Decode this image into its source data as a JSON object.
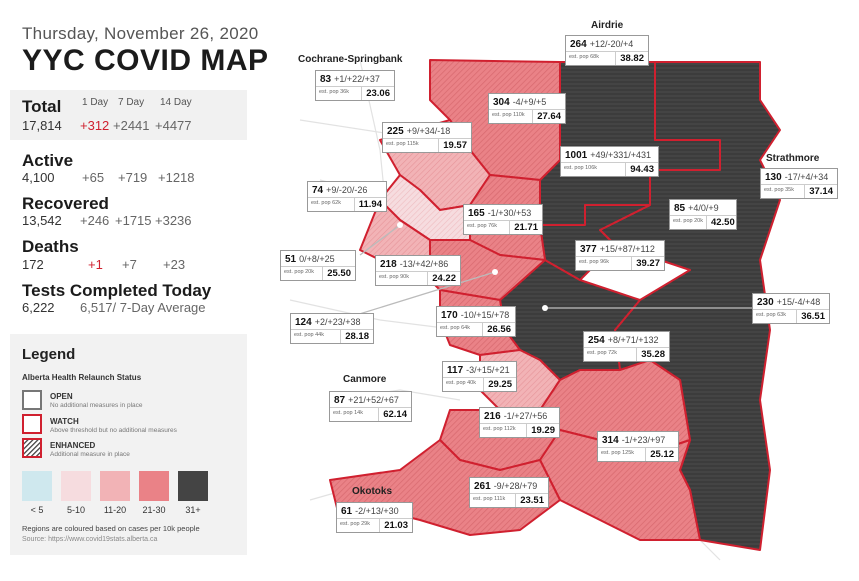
{
  "header": {
    "date": "Thursday, November 26, 2020",
    "title": "YYC COVID MAP"
  },
  "stats": {
    "total": {
      "label": "Total",
      "value": "17,814",
      "day1": "+312",
      "day7": "+2441",
      "day14": "+4477"
    },
    "col_headers": {
      "day1": "1 Day",
      "day7": "7 Day",
      "day14": "14 Day"
    },
    "active": {
      "label": "Active",
      "value": "4,100",
      "day1": "+65",
      "day7": "+719",
      "day14": "+1218"
    },
    "recovered": {
      "label": "Recovered",
      "value": "13,542",
      "day1": "+246",
      "day7": "+1715",
      "day14": "+3236"
    },
    "deaths": {
      "label": "Deaths",
      "value": "172",
      "day1": "+1",
      "day7": "+7",
      "day14": "+23"
    },
    "tests": {
      "label": "Tests Completed Today",
      "value": "6,222",
      "average": "6,517/ 7-Day Average"
    }
  },
  "legend": {
    "title": "Legend",
    "subtitle": "Alberta Health Relaunch Status",
    "statuses": [
      {
        "label": "OPEN",
        "desc": "No additional measures in place"
      },
      {
        "label": "WATCH",
        "desc": "Above threshold but no additional measures"
      },
      {
        "label": "ENHANCED",
        "desc": "Additional measure in place"
      }
    ],
    "scale": [
      {
        "label": "< 5",
        "color": "#cfe8ee"
      },
      {
        "label": "5-10",
        "color": "#f6dcdf"
      },
      {
        "label": "11-20",
        "color": "#f2b3b6"
      },
      {
        "label": "21-30",
        "color": "#ea8287"
      },
      {
        "label": "31+",
        "color": "#444444"
      }
    ],
    "note": "Regions are coloured based on cases per 10k people",
    "source": "Source: https://www.covid19stats.alberta.ca"
  },
  "areas": {
    "airdrie": "Airdrie",
    "cochrane": "Cochrane-Springbank",
    "strathmore": "Strathmore",
    "canmore": "Canmore",
    "okotoks": "Okotoks"
  },
  "districts": [
    {
      "cases": "264",
      "change": "+12/-20/+4",
      "pop": "est. pop 68k",
      "rate": "38.82"
    },
    {
      "cases": "83",
      "change": "+1/+22/+37",
      "pop": "est. pop 36k",
      "rate": "23.06"
    },
    {
      "cases": "304",
      "change": "-4/+9/+5",
      "pop": "est. pop 110k",
      "rate": "27.64"
    },
    {
      "cases": "225",
      "change": "+9/+34/-18",
      "pop": "est. pop 115k",
      "rate": "19.57"
    },
    {
      "cases": "1001",
      "change": "+49/+331/+431",
      "pop": "est. pop 106k",
      "rate": "94.43"
    },
    {
      "cases": "130",
      "change": "-17/+4/+34",
      "pop": "est. pop 35k",
      "rate": "37.14"
    },
    {
      "cases": "74",
      "change": "+9/-20/-26",
      "pop": "est. pop 62k",
      "rate": "11.94"
    },
    {
      "cases": "165",
      "change": "-1/+30/+53",
      "pop": "est. pop 76k",
      "rate": "21.71"
    },
    {
      "cases": "85",
      "change": "+4/0/+9",
      "pop": "est. pop 20k",
      "rate": "42.50"
    },
    {
      "cases": "51",
      "change": "0/+8/+25",
      "pop": "est. pop 20k",
      "rate": "25.50"
    },
    {
      "cases": "218",
      "change": "-13/+42/+86",
      "pop": "est. pop 90k",
      "rate": "24.22"
    },
    {
      "cases": "377",
      "change": "+15/+87/+112",
      "pop": "est. pop 96k",
      "rate": "39.27"
    },
    {
      "cases": "230",
      "change": "+15/-4/+48",
      "pop": "est. pop 63k",
      "rate": "36.51"
    },
    {
      "cases": "124",
      "change": "+2/+23/+38",
      "pop": "est. pop 44k",
      "rate": "28.18"
    },
    {
      "cases": "170",
      "change": "-10/+15/+78",
      "pop": "est. pop 64k",
      "rate": "26.56"
    },
    {
      "cases": "254",
      "change": "+8/+71/+132",
      "pop": "est. pop 72k",
      "rate": "35.28"
    },
    {
      "cases": "117",
      "change": "-3/+15/+21",
      "pop": "est. pop 40k",
      "rate": "29.25"
    },
    {
      "cases": "87",
      "change": "+21/+52/+67",
      "pop": "est. pop 14k",
      "rate": "62.14"
    },
    {
      "cases": "216",
      "change": "-1/+27/+56",
      "pop": "est. pop 112k",
      "rate": "19.29"
    },
    {
      "cases": "314",
      "change": "-1/+23/+97",
      "pop": "est. pop 125k",
      "rate": "25.12"
    },
    {
      "cases": "261",
      "change": "-9/+28/+79",
      "pop": "est. pop 111k",
      "rate": "23.51"
    },
    {
      "cases": "61",
      "change": "-2/+13/+30",
      "pop": "est. pop 29k",
      "rate": "21.03"
    }
  ]
}
